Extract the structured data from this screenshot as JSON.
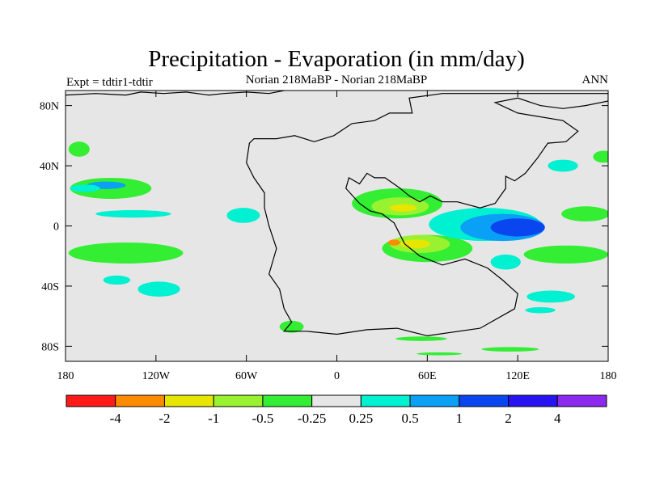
{
  "chart_data": {
    "type": "heatmap",
    "title": "Precipitation - Evaporation (in mm/day)",
    "left_label": "Expt = tdtir1-tdtir",
    "center_label": "Norian   218MaBP - Norian   218MaBP",
    "right_label": "ANN",
    "x_range": [
      -180,
      180
    ],
    "y_range": [
      -90,
      90
    ],
    "x_ticks": [
      {
        "value": -180,
        "label": "180"
      },
      {
        "value": -120,
        "label": "120W"
      },
      {
        "value": -60,
        "label": "60W"
      },
      {
        "value": 0,
        "label": "0"
      },
      {
        "value": 60,
        "label": "60E"
      },
      {
        "value": 120,
        "label": "120E"
      },
      {
        "value": 180,
        "label": "180"
      }
    ],
    "y_ticks": [
      {
        "value": 80,
        "label": "80N"
      },
      {
        "value": 40,
        "label": "40N"
      },
      {
        "value": 0,
        "label": "0"
      },
      {
        "value": -40,
        "label": "40S"
      },
      {
        "value": -80,
        "label": "80S"
      }
    ],
    "colorbar": {
      "colors": [
        "#ff1a1a",
        "#ff8c00",
        "#e6e600",
        "#99f230",
        "#33ee33",
        "#e6e6e6",
        "#00f0d2",
        "#0aa0f5",
        "#0a46f0",
        "#2814f0",
        "#8c28f0"
      ],
      "tick_labels": [
        "-4",
        "-2",
        "-1",
        "-0.5",
        "-0.25",
        "0.25",
        "0.5",
        "1",
        "2",
        "4"
      ]
    },
    "background_color": "#e6e6e6",
    "regions": [
      {
        "class": 4,
        "lon": -150,
        "lat": 25,
        "rx": 27,
        "ry": 7
      },
      {
        "class": 7,
        "lon": -153,
        "lat": 27,
        "rx": 13,
        "ry": 2.5
      },
      {
        "class": 6,
        "lon": -167,
        "lat": 25,
        "rx": 10,
        "ry": 2.5
      },
      {
        "class": 6,
        "lon": -135,
        "lat": 8,
        "rx": 25,
        "ry": 2.5
      },
      {
        "class": 4,
        "lon": -171,
        "lat": 51,
        "rx": 7,
        "ry": 5
      },
      {
        "class": 6,
        "lon": -62,
        "lat": 7,
        "rx": 11,
        "ry": 5
      },
      {
        "class": 4,
        "lon": -140,
        "lat": -18,
        "rx": 38,
        "ry": 7
      },
      {
        "class": 6,
        "lon": -118,
        "lat": -42,
        "rx": 14,
        "ry": 5
      },
      {
        "class": 6,
        "lon": -146,
        "lat": -36,
        "rx": 9,
        "ry": 3
      },
      {
        "class": 4,
        "lon": -30,
        "lat": -67,
        "rx": 8,
        "ry": 4
      },
      {
        "class": 4,
        "lon": 40,
        "lat": 15,
        "rx": 30,
        "ry": 10
      },
      {
        "class": 3,
        "lon": 42,
        "lat": 13,
        "rx": 19,
        "ry": 6
      },
      {
        "class": 2,
        "lon": 44,
        "lat": 12,
        "rx": 9,
        "ry": 2.5
      },
      {
        "class": 4,
        "lon": 60,
        "lat": -15,
        "rx": 30,
        "ry": 9
      },
      {
        "class": 3,
        "lon": 55,
        "lat": -12,
        "rx": 20,
        "ry": 6
      },
      {
        "class": 2,
        "lon": 52,
        "lat": -12,
        "rx": 10,
        "ry": 3
      },
      {
        "class": 1,
        "lon": 38,
        "lat": -11,
        "rx": 4,
        "ry": 2
      },
      {
        "class": 6,
        "lon": 98,
        "lat": 1,
        "rx": 37,
        "ry": 11
      },
      {
        "class": 7,
        "lon": 110,
        "lat": -1,
        "rx": 28,
        "ry": 9
      },
      {
        "class": 8,
        "lon": 120,
        "lat": -1,
        "rx": 18,
        "ry": 6
      },
      {
        "class": 4,
        "lon": 165,
        "lat": 8,
        "rx": 16,
        "ry": 5
      },
      {
        "class": 4,
        "lon": 152,
        "lat": -19,
        "rx": 28,
        "ry": 6
      },
      {
        "class": 6,
        "lon": 112,
        "lat": -24,
        "rx": 10,
        "ry": 5
      },
      {
        "class": 6,
        "lon": 150,
        "lat": 40,
        "rx": 10,
        "ry": 4
      },
      {
        "class": 4,
        "lon": 177,
        "lat": 46,
        "rx": 7,
        "ry": 4
      },
      {
        "class": 6,
        "lon": 142,
        "lat": -47,
        "rx": 16,
        "ry": 4
      },
      {
        "class": 6,
        "lon": 135,
        "lat": -56,
        "rx": 10,
        "ry": 2
      },
      {
        "class": 4,
        "lon": 56,
        "lat": -75,
        "rx": 17,
        "ry": 1.5
      },
      {
        "class": 4,
        "lon": 115,
        "lat": -82,
        "rx": 19,
        "ry": 1.5
      },
      {
        "class": 4,
        "lon": 68,
        "lat": -85,
        "rx": 15,
        "ry": 1
      }
    ],
    "continent_outline": [
      [
        -58,
        55
      ],
      [
        -55,
        58
      ],
      [
        -40,
        58
      ],
      [
        -28,
        60
      ],
      [
        -15,
        56
      ],
      [
        -2,
        60
      ],
      [
        10,
        68
      ],
      [
        25,
        70
      ],
      [
        35,
        75
      ],
      [
        50,
        75
      ],
      [
        48,
        85
      ],
      [
        70,
        88
      ],
      [
        100,
        88
      ],
      [
        130,
        88
      ],
      [
        160,
        88
      ],
      [
        180,
        88
      ],
      [
        180,
        83
      ],
      [
        165,
        80
      ],
      [
        150,
        78
      ],
      [
        135,
        80
      ],
      [
        120,
        85
      ],
      [
        105,
        82
      ],
      [
        120,
        75
      ],
      [
        150,
        70
      ],
      [
        160,
        63
      ],
      [
        152,
        56
      ],
      [
        140,
        55
      ],
      [
        133,
        45
      ],
      [
        125,
        35
      ],
      [
        118,
        30
      ],
      [
        112,
        33
      ],
      [
        112,
        25
      ],
      [
        105,
        15
      ],
      [
        95,
        12
      ],
      [
        80,
        16
      ],
      [
        70,
        16
      ],
      [
        62,
        20
      ],
      [
        55,
        16
      ],
      [
        48,
        20
      ],
      [
        42,
        25
      ],
      [
        32,
        32
      ],
      [
        25,
        32
      ],
      [
        20,
        35
      ],
      [
        15,
        28
      ],
      [
        8,
        32
      ],
      [
        6,
        25
      ],
      [
        15,
        15
      ],
      [
        22,
        10
      ],
      [
        30,
        8
      ],
      [
        38,
        2
      ],
      [
        42,
        -6
      ],
      [
        45,
        -12
      ],
      [
        55,
        -20
      ],
      [
        70,
        -26
      ],
      [
        85,
        -22
      ],
      [
        100,
        -28
      ],
      [
        110,
        -36
      ],
      [
        120,
        -45
      ],
      [
        118,
        -55
      ],
      [
        95,
        -68
      ],
      [
        60,
        -73
      ],
      [
        40,
        -68
      ],
      [
        20,
        -69
      ],
      [
        0,
        -72
      ],
      [
        -20,
        -70
      ],
      [
        -35,
        -70
      ],
      [
        -30,
        -64
      ],
      [
        -35,
        -55
      ],
      [
        -38,
        -42
      ],
      [
        -45,
        -32
      ],
      [
        -40,
        -15
      ],
      [
        -45,
        0
      ],
      [
        -48,
        12
      ],
      [
        -48,
        22
      ],
      [
        -55,
        32
      ],
      [
        -60,
        42
      ],
      [
        -58,
        55
      ]
    ],
    "coast_line": [
      [
        -180,
        87
      ],
      [
        -160,
        88
      ],
      [
        -140,
        87
      ],
      [
        -130,
        89
      ],
      [
        -115,
        88
      ],
      [
        -100,
        89
      ],
      [
        -85,
        87
      ],
      [
        -75,
        88
      ],
      [
        -60,
        89
      ],
      [
        -45,
        88
      ],
      [
        -35,
        90
      ]
    ]
  }
}
